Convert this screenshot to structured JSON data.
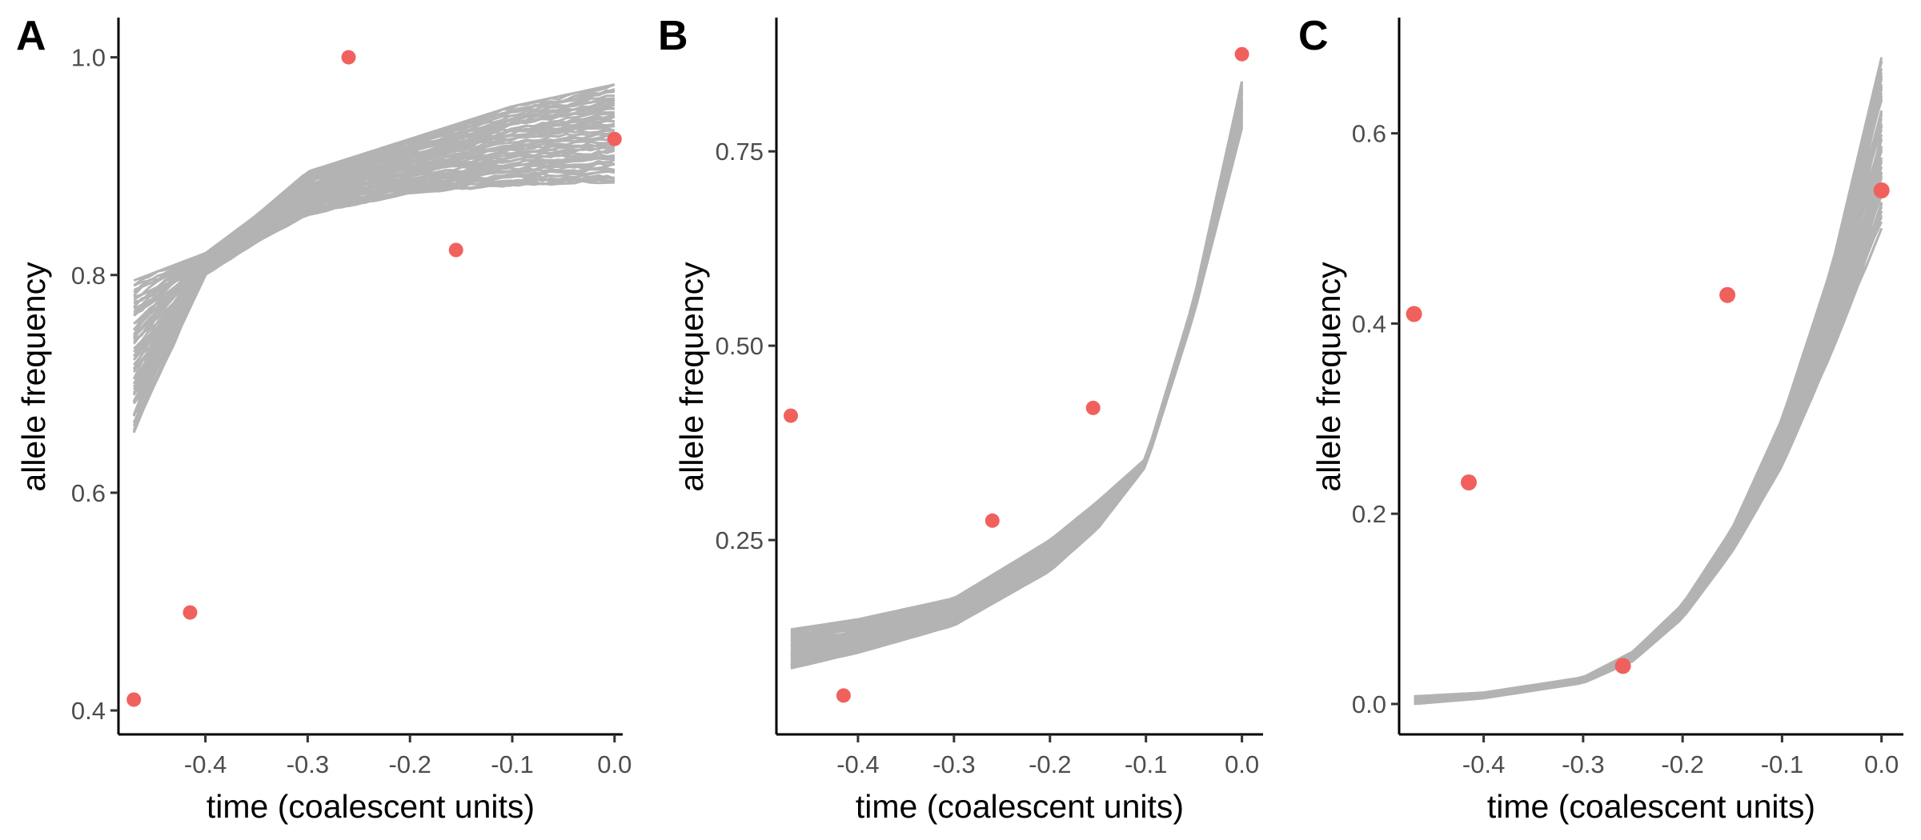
{
  "colors": {
    "trajectory": "#b3b3b3",
    "observed": "#f0615e",
    "axis": "#000000"
  },
  "chart_data": [
    {
      "type": "line",
      "panel_label": "A",
      "xlabel": "time (coalescent units)",
      "ylabel": "allele frequency",
      "xlim": [
        -0.485,
        0.008
      ],
      "ylim": [
        0.378,
        1.035
      ],
      "x_ticks": [
        -0.4,
        -0.3,
        -0.2,
        -0.1,
        0.0
      ],
      "x_tick_labels": [
        "-0.4",
        "-0.3",
        "-0.2",
        "-0.1",
        "0.0"
      ],
      "y_ticks": [
        0.4,
        0.6,
        0.8,
        1.0
      ],
      "y_tick_labels": [
        "0.4",
        "0.6",
        "0.8",
        "1.0"
      ],
      "trajectory_band": {
        "x": [
          -0.47,
          -0.4,
          -0.35,
          -0.3,
          -0.2,
          -0.1,
          0.0
        ],
        "lower": [
          0.655,
          0.8,
          0.83,
          0.855,
          0.875,
          0.882,
          0.885
        ],
        "upper": [
          0.795,
          0.82,
          0.855,
          0.895,
          0.925,
          0.955,
          0.975
        ],
        "n_trajectories": 60
      },
      "observed": {
        "x": [
          -0.47,
          -0.415,
          -0.26,
          -0.155,
          0.0
        ],
        "y": [
          0.41,
          0.49,
          1.0,
          0.823,
          0.925
        ]
      }
    },
    {
      "type": "line",
      "panel_label": "B",
      "xlabel": "time (coalescent units)",
      "ylabel": "allele frequency",
      "xlim": [
        -0.485,
        0.022
      ],
      "ylim": [
        0.0,
        0.92
      ],
      "x_ticks": [
        -0.4,
        -0.3,
        -0.2,
        -0.1,
        0.0
      ],
      "x_tick_labels": [
        "-0.4",
        "-0.3",
        "-0.2",
        "-0.1",
        "0.0"
      ],
      "y_ticks": [
        0.25,
        0.5,
        0.75
      ],
      "y_tick_labels": [
        "0.25",
        "0.50",
        "0.75"
      ],
      "trajectory_band": {
        "x": [
          -0.47,
          -0.4,
          -0.3,
          -0.2,
          -0.15,
          -0.1,
          -0.05,
          0.0
        ],
        "lower": [
          0.085,
          0.105,
          0.14,
          0.21,
          0.265,
          0.345,
          0.54,
          0.78
        ],
        "upper": [
          0.135,
          0.148,
          0.175,
          0.25,
          0.3,
          0.355,
          0.56,
          0.84
        ],
        "n_trajectories": 60
      },
      "observed": {
        "x": [
          -0.47,
          -0.415,
          -0.26,
          -0.155,
          0.0
        ],
        "y": [
          0.41,
          0.05,
          0.275,
          0.42,
          0.875
        ]
      }
    },
    {
      "type": "line",
      "panel_label": "C",
      "xlabel": "time (coalescent units)",
      "ylabel": "allele frequency",
      "xlim": [
        -0.485,
        0.022
      ],
      "ylim": [
        -0.032,
        0.72
      ],
      "x_ticks": [
        -0.4,
        -0.3,
        -0.2,
        -0.1,
        0.0
      ],
      "x_tick_labels": [
        "-0.4",
        "-0.3",
        "-0.2",
        "-0.1",
        "0.0"
      ],
      "y_ticks": [
        0.0,
        0.2,
        0.4,
        0.6
      ],
      "y_tick_labels": [
        "0.0",
        "0.2",
        "0.4",
        "0.6"
      ],
      "trajectory_band": {
        "x": [
          -0.47,
          -0.4,
          -0.3,
          -0.25,
          -0.2,
          -0.15,
          -0.1,
          -0.05,
          0.0
        ],
        "lower": [
          0.0,
          0.006,
          0.022,
          0.045,
          0.09,
          0.16,
          0.25,
          0.37,
          0.5
        ],
        "upper": [
          0.008,
          0.012,
          0.028,
          0.055,
          0.105,
          0.185,
          0.3,
          0.46,
          0.68
        ],
        "n_trajectories": 60
      },
      "observed": {
        "x": [
          -0.47,
          -0.415,
          -0.26,
          -0.155,
          0.0
        ],
        "y": [
          0.41,
          0.233,
          0.04,
          0.43,
          0.54
        ]
      }
    }
  ]
}
